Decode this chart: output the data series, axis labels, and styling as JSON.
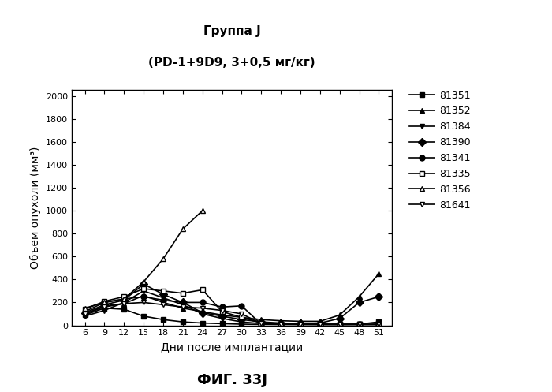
{
  "title_line1": "Группа J",
  "title_line2": "(PD-1+9D9, 3+0,5 мг/кг)",
  "xlabel": "Дни после имплантации",
  "ylabel": "Объем опухоли (мм³)",
  "caption": "ФИГ. 33J",
  "xticks": [
    6,
    9,
    12,
    15,
    18,
    21,
    24,
    27,
    30,
    33,
    36,
    39,
    42,
    45,
    48,
    51
  ],
  "yticks": [
    0,
    200,
    400,
    600,
    800,
    1000,
    1200,
    1400,
    1600,
    1800,
    2000
  ],
  "ylim": [
    0,
    2050
  ],
  "xlim": [
    4,
    53
  ],
  "series": [
    {
      "label": "81351",
      "marker": "s",
      "mfc": "black",
      "x": [
        6,
        9,
        12,
        15,
        18,
        21,
        24,
        27,
        30,
        33,
        36,
        39,
        42,
        45,
        48,
        51
      ],
      "y": [
        90,
        150,
        140,
        80,
        50,
        30,
        20,
        15,
        10,
        8,
        8,
        8,
        8,
        8,
        10,
        30
      ]
    },
    {
      "label": "81352",
      "marker": "^",
      "mfc": "black",
      "x": [
        6,
        9,
        12,
        15,
        18,
        21,
        24,
        27,
        30,
        33,
        36,
        39,
        42,
        45,
        48,
        51
      ],
      "y": [
        100,
        170,
        190,
        260,
        200,
        150,
        120,
        90,
        70,
        50,
        40,
        35,
        35,
        90,
        250,
        450
      ]
    },
    {
      "label": "81384",
      "marker": "v",
      "mfc": "black",
      "x": [
        6,
        9,
        12,
        15,
        18,
        21,
        24,
        27,
        30,
        33,
        36,
        39,
        42,
        45,
        48,
        51
      ],
      "y": [
        80,
        130,
        200,
        300,
        240,
        180,
        100,
        60,
        30,
        15,
        12,
        10,
        10,
        8,
        8,
        8
      ]
    },
    {
      "label": "81390",
      "marker": "D",
      "mfc": "black",
      "x": [
        6,
        9,
        12,
        15,
        18,
        21,
        24,
        27,
        30,
        33,
        36,
        39,
        42,
        45,
        48,
        51
      ],
      "y": [
        110,
        180,
        220,
        360,
        270,
        200,
        110,
        80,
        50,
        30,
        20,
        15,
        20,
        60,
        200,
        250
      ]
    },
    {
      "label": "81341",
      "marker": "o",
      "mfc": "black",
      "x": [
        6,
        9,
        12,
        15,
        18,
        21,
        24,
        27,
        30,
        33,
        36,
        39,
        42,
        45,
        48,
        51
      ],
      "y": [
        120,
        200,
        230,
        250,
        220,
        200,
        200,
        160,
        170,
        10,
        8,
        8,
        8,
        8,
        8,
        8
      ]
    },
    {
      "label": "81335",
      "marker": "s",
      "mfc": "white",
      "x": [
        6,
        9,
        12,
        15,
        18,
        21,
        24,
        27,
        30,
        33,
        36,
        39,
        42,
        45,
        48,
        51
      ],
      "y": [
        140,
        210,
        250,
        320,
        300,
        280,
        310,
        120,
        70,
        20,
        12,
        10,
        8,
        8,
        8,
        8
      ]
    },
    {
      "label": "81356",
      "marker": "^",
      "mfc": "white",
      "x": [
        6,
        9,
        12,
        15,
        18,
        21,
        24
      ],
      "y": [
        150,
        200,
        230,
        380,
        580,
        840,
        1000
      ]
    },
    {
      "label": "81641",
      "marker": "v",
      "mfc": "white",
      "x": [
        6,
        9,
        12,
        15,
        18,
        21,
        24,
        27,
        30,
        33,
        36,
        39,
        42,
        45,
        48,
        51
      ],
      "y": [
        100,
        160,
        190,
        200,
        180,
        160,
        150,
        130,
        100,
        15,
        10,
        8,
        8,
        8,
        8,
        8
      ]
    }
  ],
  "background": "#ffffff",
  "linewidth": 1.2,
  "markersize": 5,
  "tick_labelsize": 8,
  "axis_labelsize": 10,
  "title_fontsize": 11,
  "legend_fontsize": 9,
  "caption_fontsize": 13
}
